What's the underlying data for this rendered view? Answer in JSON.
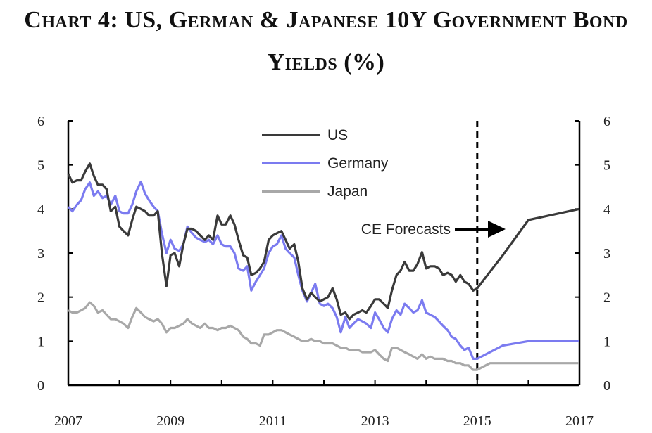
{
  "chart_data": {
    "type": "line",
    "title_line1": "Chart 4: US, German & Japanese 10Y Government Bond",
    "title_line2": "Yields (%)",
    "xlabel": "",
    "ylabel": "",
    "xlim": [
      2007,
      2017
    ],
    "ylim": [
      0,
      6
    ],
    "x_ticks": [
      "2007",
      "2009",
      "2011",
      "2013",
      "2015",
      "2017"
    ],
    "y_ticks": [
      "0",
      "1",
      "2",
      "3",
      "4",
      "5",
      "6"
    ],
    "legend_position": "top-center",
    "forecast_start": 2015,
    "annotation": "CE Forecasts",
    "series": [
      {
        "name": "US",
        "color": "#3a3a3a",
        "points": [
          [
            2007.0,
            4.8
          ],
          [
            2007.08,
            4.6
          ],
          [
            2007.17,
            4.65
          ],
          [
            2007.25,
            4.65
          ],
          [
            2007.33,
            4.85
          ],
          [
            2007.42,
            5.03
          ],
          [
            2007.5,
            4.75
          ],
          [
            2007.58,
            4.55
          ],
          [
            2007.67,
            4.55
          ],
          [
            2007.75,
            4.45
          ],
          [
            2007.83,
            3.95
          ],
          [
            2007.92,
            4.05
          ],
          [
            2008.0,
            3.6
          ],
          [
            2008.08,
            3.5
          ],
          [
            2008.17,
            3.4
          ],
          [
            2008.25,
            3.75
          ],
          [
            2008.33,
            4.05
          ],
          [
            2008.42,
            4.0
          ],
          [
            2008.5,
            3.95
          ],
          [
            2008.58,
            3.85
          ],
          [
            2008.67,
            3.85
          ],
          [
            2008.75,
            3.95
          ],
          [
            2008.83,
            3.0
          ],
          [
            2008.92,
            2.25
          ],
          [
            2009.0,
            2.95
          ],
          [
            2009.08,
            3.0
          ],
          [
            2009.17,
            2.7
          ],
          [
            2009.25,
            3.2
          ],
          [
            2009.33,
            3.55
          ],
          [
            2009.42,
            3.55
          ],
          [
            2009.5,
            3.5
          ],
          [
            2009.58,
            3.4
          ],
          [
            2009.67,
            3.3
          ],
          [
            2009.75,
            3.4
          ],
          [
            2009.83,
            3.3
          ],
          [
            2009.92,
            3.85
          ],
          [
            2010.0,
            3.65
          ],
          [
            2010.08,
            3.65
          ],
          [
            2010.17,
            3.85
          ],
          [
            2010.25,
            3.65
          ],
          [
            2010.33,
            3.3
          ],
          [
            2010.42,
            2.95
          ],
          [
            2010.5,
            2.9
          ],
          [
            2010.58,
            2.5
          ],
          [
            2010.67,
            2.55
          ],
          [
            2010.75,
            2.65
          ],
          [
            2010.83,
            2.8
          ],
          [
            2010.92,
            3.3
          ],
          [
            2011.0,
            3.4
          ],
          [
            2011.08,
            3.45
          ],
          [
            2011.17,
            3.5
          ],
          [
            2011.25,
            3.3
          ],
          [
            2011.33,
            3.1
          ],
          [
            2011.42,
            3.2
          ],
          [
            2011.5,
            2.8
          ],
          [
            2011.58,
            2.2
          ],
          [
            2011.67,
            1.95
          ],
          [
            2011.75,
            2.1
          ],
          [
            2011.83,
            2.0
          ],
          [
            2011.92,
            1.9
          ],
          [
            2012.0,
            1.95
          ],
          [
            2012.08,
            2.0
          ],
          [
            2012.17,
            2.2
          ],
          [
            2012.25,
            1.95
          ],
          [
            2012.33,
            1.6
          ],
          [
            2012.42,
            1.65
          ],
          [
            2012.5,
            1.5
          ],
          [
            2012.58,
            1.6
          ],
          [
            2012.67,
            1.65
          ],
          [
            2012.75,
            1.7
          ],
          [
            2012.83,
            1.65
          ],
          [
            2012.92,
            1.8
          ],
          [
            2013.0,
            1.95
          ],
          [
            2013.08,
            1.95
          ],
          [
            2013.17,
            1.85
          ],
          [
            2013.25,
            1.75
          ],
          [
            2013.33,
            2.15
          ],
          [
            2013.42,
            2.5
          ],
          [
            2013.5,
            2.6
          ],
          [
            2013.58,
            2.8
          ],
          [
            2013.67,
            2.6
          ],
          [
            2013.75,
            2.6
          ],
          [
            2013.83,
            2.75
          ],
          [
            2013.92,
            3.02
          ],
          [
            2014.0,
            2.65
          ],
          [
            2014.08,
            2.7
          ],
          [
            2014.17,
            2.7
          ],
          [
            2014.25,
            2.65
          ],
          [
            2014.33,
            2.5
          ],
          [
            2014.42,
            2.55
          ],
          [
            2014.5,
            2.5
          ],
          [
            2014.58,
            2.35
          ],
          [
            2014.67,
            2.5
          ],
          [
            2014.75,
            2.35
          ],
          [
            2014.83,
            2.3
          ],
          [
            2014.92,
            2.15
          ],
          [
            2015.0,
            2.2
          ],
          [
            2015.5,
            2.95
          ],
          [
            2016.0,
            3.75
          ],
          [
            2017.0,
            4.0
          ]
        ]
      },
      {
        "name": "Germany",
        "color": "#7b7bf0",
        "points": [
          [
            2007.0,
            4.05
          ],
          [
            2007.08,
            3.95
          ],
          [
            2007.17,
            4.1
          ],
          [
            2007.25,
            4.2
          ],
          [
            2007.33,
            4.45
          ],
          [
            2007.42,
            4.6
          ],
          [
            2007.5,
            4.3
          ],
          [
            2007.58,
            4.4
          ],
          [
            2007.67,
            4.25
          ],
          [
            2007.75,
            4.3
          ],
          [
            2007.83,
            4.1
          ],
          [
            2007.92,
            4.3
          ],
          [
            2008.0,
            3.95
          ],
          [
            2008.08,
            3.9
          ],
          [
            2008.17,
            3.9
          ],
          [
            2008.25,
            4.1
          ],
          [
            2008.33,
            4.4
          ],
          [
            2008.42,
            4.62
          ],
          [
            2008.5,
            4.35
          ],
          [
            2008.58,
            4.2
          ],
          [
            2008.67,
            4.05
          ],
          [
            2008.75,
            3.95
          ],
          [
            2008.83,
            3.45
          ],
          [
            2008.92,
            3.0
          ],
          [
            2009.0,
            3.3
          ],
          [
            2009.08,
            3.1
          ],
          [
            2009.17,
            3.05
          ],
          [
            2009.25,
            3.2
          ],
          [
            2009.33,
            3.6
          ],
          [
            2009.42,
            3.45
          ],
          [
            2009.5,
            3.35
          ],
          [
            2009.58,
            3.3
          ],
          [
            2009.67,
            3.25
          ],
          [
            2009.75,
            3.3
          ],
          [
            2009.83,
            3.2
          ],
          [
            2009.92,
            3.4
          ],
          [
            2010.0,
            3.2
          ],
          [
            2010.08,
            3.15
          ],
          [
            2010.17,
            3.15
          ],
          [
            2010.25,
            3.0
          ],
          [
            2010.33,
            2.65
          ],
          [
            2010.42,
            2.6
          ],
          [
            2010.5,
            2.7
          ],
          [
            2010.58,
            2.15
          ],
          [
            2010.67,
            2.35
          ],
          [
            2010.75,
            2.5
          ],
          [
            2010.83,
            2.65
          ],
          [
            2010.92,
            3.0
          ],
          [
            2011.0,
            3.15
          ],
          [
            2011.08,
            3.2
          ],
          [
            2011.17,
            3.4
          ],
          [
            2011.25,
            3.1
          ],
          [
            2011.33,
            3.0
          ],
          [
            2011.42,
            2.9
          ],
          [
            2011.5,
            2.5
          ],
          [
            2011.58,
            2.15
          ],
          [
            2011.67,
            1.9
          ],
          [
            2011.75,
            2.1
          ],
          [
            2011.83,
            2.3
          ],
          [
            2011.92,
            1.85
          ],
          [
            2012.0,
            1.8
          ],
          [
            2012.08,
            1.85
          ],
          [
            2012.17,
            1.75
          ],
          [
            2012.25,
            1.55
          ],
          [
            2012.33,
            1.2
          ],
          [
            2012.42,
            1.55
          ],
          [
            2012.5,
            1.3
          ],
          [
            2012.58,
            1.4
          ],
          [
            2012.67,
            1.5
          ],
          [
            2012.75,
            1.45
          ],
          [
            2012.83,
            1.4
          ],
          [
            2012.92,
            1.3
          ],
          [
            2013.0,
            1.65
          ],
          [
            2013.08,
            1.5
          ],
          [
            2013.17,
            1.3
          ],
          [
            2013.25,
            1.2
          ],
          [
            2013.33,
            1.5
          ],
          [
            2013.42,
            1.7
          ],
          [
            2013.5,
            1.6
          ],
          [
            2013.58,
            1.85
          ],
          [
            2013.67,
            1.75
          ],
          [
            2013.75,
            1.65
          ],
          [
            2013.83,
            1.7
          ],
          [
            2013.92,
            1.93
          ],
          [
            2014.0,
            1.65
          ],
          [
            2014.08,
            1.6
          ],
          [
            2014.17,
            1.55
          ],
          [
            2014.25,
            1.45
          ],
          [
            2014.33,
            1.35
          ],
          [
            2014.42,
            1.25
          ],
          [
            2014.5,
            1.1
          ],
          [
            2014.58,
            1.05
          ],
          [
            2014.67,
            0.9
          ],
          [
            2014.75,
            0.8
          ],
          [
            2014.83,
            0.85
          ],
          [
            2014.92,
            0.6
          ],
          [
            2015.0,
            0.6
          ],
          [
            2015.5,
            0.9
          ],
          [
            2016.0,
            1.0
          ],
          [
            2017.0,
            1.0
          ]
        ]
      },
      {
        "name": "Japan",
        "color": "#a8a8a8",
        "points": [
          [
            2007.0,
            1.7
          ],
          [
            2007.08,
            1.65
          ],
          [
            2007.17,
            1.65
          ],
          [
            2007.25,
            1.7
          ],
          [
            2007.33,
            1.75
          ],
          [
            2007.42,
            1.88
          ],
          [
            2007.5,
            1.8
          ],
          [
            2007.58,
            1.65
          ],
          [
            2007.67,
            1.7
          ],
          [
            2007.75,
            1.6
          ],
          [
            2007.83,
            1.5
          ],
          [
            2007.92,
            1.5
          ],
          [
            2008.0,
            1.45
          ],
          [
            2008.08,
            1.4
          ],
          [
            2008.17,
            1.3
          ],
          [
            2008.25,
            1.55
          ],
          [
            2008.33,
            1.75
          ],
          [
            2008.42,
            1.65
          ],
          [
            2008.5,
            1.55
          ],
          [
            2008.58,
            1.5
          ],
          [
            2008.67,
            1.45
          ],
          [
            2008.75,
            1.5
          ],
          [
            2008.83,
            1.4
          ],
          [
            2008.92,
            1.2
          ],
          [
            2009.0,
            1.3
          ],
          [
            2009.08,
            1.3
          ],
          [
            2009.17,
            1.35
          ],
          [
            2009.25,
            1.4
          ],
          [
            2009.33,
            1.5
          ],
          [
            2009.42,
            1.4
          ],
          [
            2009.5,
            1.35
          ],
          [
            2009.58,
            1.3
          ],
          [
            2009.67,
            1.4
          ],
          [
            2009.75,
            1.3
          ],
          [
            2009.83,
            1.3
          ],
          [
            2009.92,
            1.25
          ],
          [
            2010.0,
            1.3
          ],
          [
            2010.08,
            1.3
          ],
          [
            2010.17,
            1.35
          ],
          [
            2010.25,
            1.3
          ],
          [
            2010.33,
            1.25
          ],
          [
            2010.42,
            1.1
          ],
          [
            2010.5,
            1.05
          ],
          [
            2010.58,
            0.95
          ],
          [
            2010.67,
            0.95
          ],
          [
            2010.75,
            0.9
          ],
          [
            2010.83,
            1.15
          ],
          [
            2010.92,
            1.15
          ],
          [
            2011.0,
            1.2
          ],
          [
            2011.08,
            1.25
          ],
          [
            2011.17,
            1.25
          ],
          [
            2011.25,
            1.2
          ],
          [
            2011.33,
            1.15
          ],
          [
            2011.42,
            1.1
          ],
          [
            2011.5,
            1.05
          ],
          [
            2011.58,
            1.0
          ],
          [
            2011.67,
            1.0
          ],
          [
            2011.75,
            1.05
          ],
          [
            2011.83,
            1.0
          ],
          [
            2011.92,
            1.0
          ],
          [
            2012.0,
            0.95
          ],
          [
            2012.08,
            0.95
          ],
          [
            2012.17,
            0.95
          ],
          [
            2012.25,
            0.9
          ],
          [
            2012.33,
            0.85
          ],
          [
            2012.42,
            0.85
          ],
          [
            2012.5,
            0.8
          ],
          [
            2012.58,
            0.8
          ],
          [
            2012.67,
            0.8
          ],
          [
            2012.75,
            0.75
          ],
          [
            2012.83,
            0.75
          ],
          [
            2012.92,
            0.75
          ],
          [
            2013.0,
            0.8
          ],
          [
            2013.08,
            0.7
          ],
          [
            2013.17,
            0.6
          ],
          [
            2013.25,
            0.55
          ],
          [
            2013.33,
            0.85
          ],
          [
            2013.42,
            0.85
          ],
          [
            2013.5,
            0.8
          ],
          [
            2013.58,
            0.75
          ],
          [
            2013.67,
            0.7
          ],
          [
            2013.75,
            0.65
          ],
          [
            2013.83,
            0.6
          ],
          [
            2013.92,
            0.7
          ],
          [
            2014.0,
            0.6
          ],
          [
            2014.08,
            0.65
          ],
          [
            2014.17,
            0.6
          ],
          [
            2014.25,
            0.6
          ],
          [
            2014.33,
            0.6
          ],
          [
            2014.42,
            0.55
          ],
          [
            2014.5,
            0.55
          ],
          [
            2014.58,
            0.5
          ],
          [
            2014.67,
            0.5
          ],
          [
            2014.75,
            0.45
          ],
          [
            2014.83,
            0.45
          ],
          [
            2014.92,
            0.35
          ],
          [
            2015.0,
            0.35
          ],
          [
            2015.25,
            0.5
          ],
          [
            2016.0,
            0.5
          ],
          [
            2017.0,
            0.5
          ]
        ]
      }
    ]
  }
}
